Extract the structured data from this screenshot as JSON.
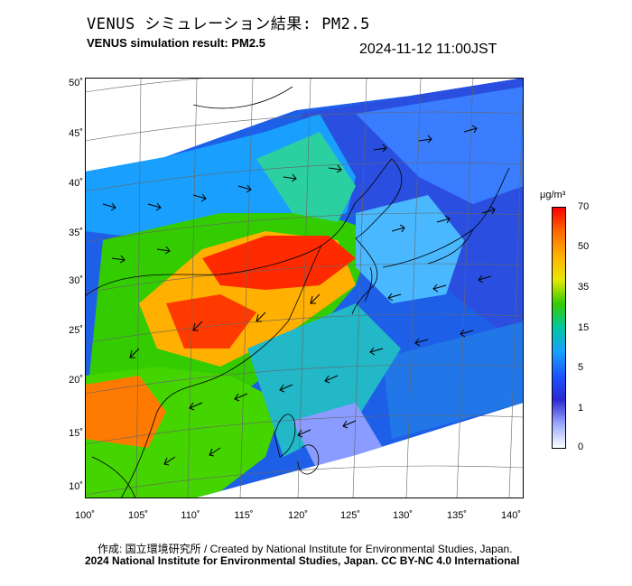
{
  "title_ja": "VENUS シミュレーション結果: PM2.5",
  "title_en": "VENUS simulation result: PM2.5",
  "timestamp": "2024-11-12 11:00JST",
  "lat_ticks": [
    "50˚",
    "45˚",
    "40˚",
    "35˚",
    "30˚",
    "25˚",
    "20˚",
    "15˚",
    "10˚"
  ],
  "lon_ticks": [
    "100˚",
    "105˚",
    "110˚",
    "115˚",
    "120˚",
    "125˚",
    "130˚",
    "135˚",
    "140˚"
  ],
  "colorbar": {
    "unit": "μg/m³",
    "ticks": [
      "70",
      "50",
      "35",
      "15",
      "5",
      "1",
      "0"
    ],
    "colors": [
      "#ff0000",
      "#ff6a00",
      "#ffb000",
      "#e8e800",
      "#33cc00",
      "#00c8a0",
      "#19a0ff",
      "#1a55ff",
      "#2a2ad0",
      "#9aa8ff",
      "#ffffff"
    ]
  },
  "credit_line1": "作成: 国立環境研究所 / Created by National Institute for Environmental Studies, Japan.",
  "credit_line2": "2024 National Institute for Environmental Studies, Japan. CC BY-NC 4.0 International"
}
